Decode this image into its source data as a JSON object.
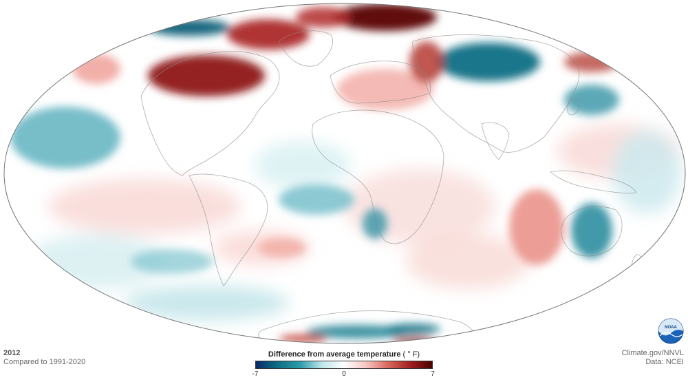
{
  "map": {
    "projection": "Mollweide",
    "variable": "Difference from average temperature"
  },
  "footer": {
    "year": "2012",
    "baseline": "Compared to 1991-2020",
    "credit": "Climate.gov/NNVL",
    "data_source": "Data: NCEI"
  },
  "legend": {
    "title": "Difference from average temperature",
    "unit": "( ° F)",
    "min_label": "-7",
    "mid_label": "0",
    "max_label": "7",
    "range": [
      -7,
      7
    ],
    "colors": [
      "#0b2a6b",
      "#0e6f84",
      "#2a9cab",
      "#bfe6ea",
      "#ffffff",
      "#f7c6c2",
      "#d9685e",
      "#a11f1f",
      "#4d0000"
    ]
  },
  "logo": {
    "icon": "noaa-logo-icon",
    "text": "NOAA"
  },
  "colors": {
    "ocean": "#ffffff",
    "outline": "#777777",
    "warm": "#c0392b",
    "cool": "#0f6e82"
  }
}
